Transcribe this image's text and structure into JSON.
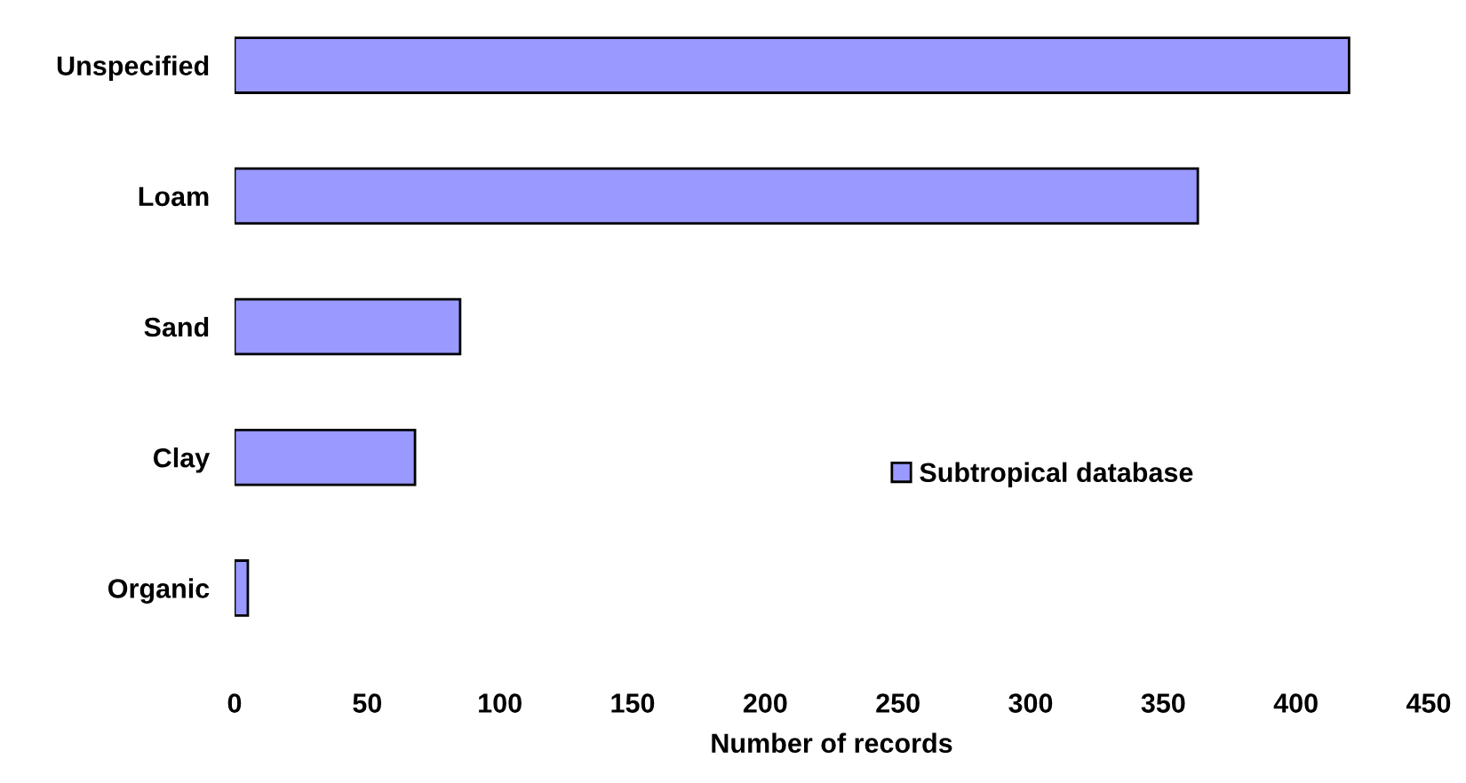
{
  "chart_data": {
    "type": "bar",
    "orientation": "horizontal",
    "categories": [
      "Unspecified",
      "Loam",
      "Sand",
      "Clay",
      "Organic"
    ],
    "series": [
      {
        "name": "Subtropical database",
        "color": "#9999ff",
        "values": [
          420,
          363,
          85,
          68,
          5
        ]
      }
    ],
    "xlabel": "Number of records",
    "xlim": [
      0,
      450
    ],
    "xticks": [
      0,
      50,
      100,
      150,
      200,
      250,
      300,
      350,
      400,
      450
    ],
    "grid": false,
    "legend": "right"
  }
}
